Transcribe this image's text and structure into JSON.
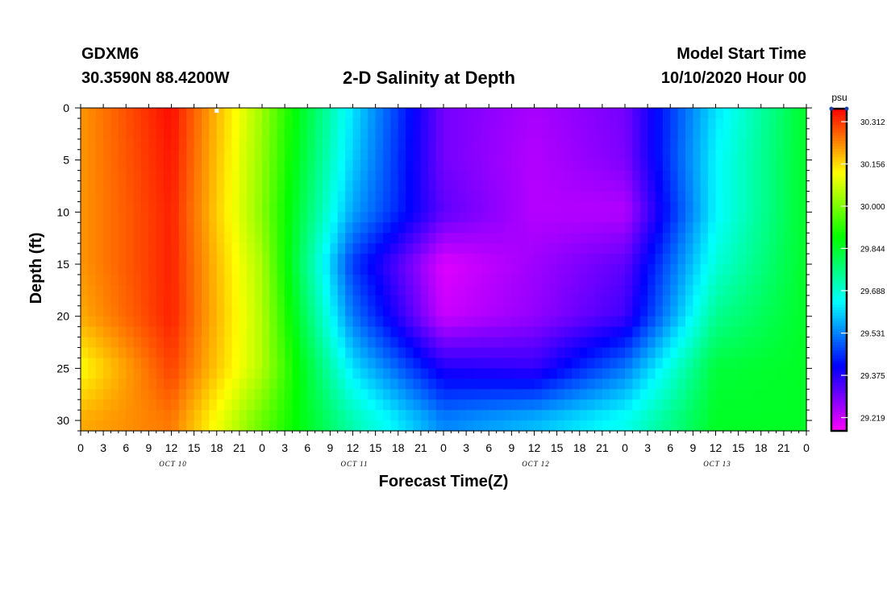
{
  "header": {
    "station": "GDXM6",
    "coords": "30.3590N 88.4200W",
    "title": "2-D Salinity at Depth",
    "model_start_label": "Model Start Time",
    "model_start_value": "10/10/2020 Hour 00"
  },
  "chart_data": {
    "type": "heatmap",
    "title": "2-D Salinity at Depth",
    "xlabel": "Forecast Time(Z)",
    "ylabel": "Depth (ft)",
    "x_ticks": [
      "0",
      "3",
      "6",
      "9",
      "12",
      "15",
      "18",
      "21",
      "0",
      "3",
      "6",
      "9",
      "12",
      "15",
      "18",
      "21",
      "0",
      "3",
      "6",
      "9",
      "12",
      "15",
      "18",
      "21",
      "0",
      "3",
      "6",
      "9",
      "12",
      "15",
      "18",
      "21",
      "0"
    ],
    "x_days": [
      "OCT 10",
      "OCT 11",
      "OCT 12",
      "OCT 13"
    ],
    "x_range_hours": [
      0,
      96
    ],
    "y_ticks": [
      0,
      5,
      10,
      15,
      20,
      25,
      30
    ],
    "ylim": [
      0,
      31
    ],
    "y_inverted": true,
    "colorbar": {
      "unit": "psu",
      "ticks": [
        "30.312",
        "30.156",
        "30.000",
        "29.844",
        "29.688",
        "29.531",
        "29.375",
        "29.219"
      ],
      "range": [
        29.17,
        30.36
      ]
    },
    "depth_profile_ft": [
      0,
      5,
      10,
      15,
      20,
      25,
      30
    ],
    "time_hours": [
      0,
      12,
      24,
      36,
      48,
      60,
      72,
      84,
      96
    ],
    "values": [
      [
        30.22,
        30.35,
        30.03,
        29.62,
        29.3,
        29.25,
        29.3,
        29.62,
        29.85
      ],
      [
        30.22,
        30.34,
        30.02,
        29.6,
        29.3,
        29.24,
        29.29,
        29.64,
        29.85
      ],
      [
        30.22,
        30.33,
        30.01,
        29.56,
        29.32,
        29.24,
        29.24,
        29.64,
        29.85
      ],
      [
        30.22,
        30.33,
        30.04,
        29.46,
        29.2,
        29.26,
        29.32,
        29.68,
        29.85
      ],
      [
        30.2,
        30.33,
        30.05,
        29.52,
        29.22,
        29.27,
        29.35,
        29.75,
        29.85
      ],
      [
        30.12,
        30.3,
        30.05,
        29.62,
        29.38,
        29.36,
        29.52,
        29.83,
        29.85
      ],
      [
        30.2,
        30.25,
        29.98,
        29.72,
        29.53,
        29.58,
        29.66,
        29.85,
        29.85
      ]
    ],
    "marker": {
      "hour": 18,
      "depth_ft": 0
    }
  }
}
